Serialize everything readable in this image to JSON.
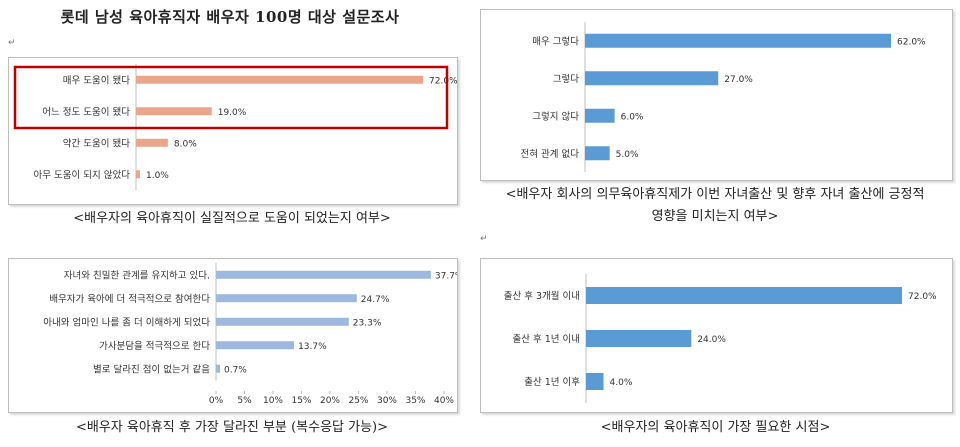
{
  "title": "롯데 남성 육아휴직자 배우자 100명 대상 설문조사",
  "paragraph_mark": "↵",
  "colors": {
    "salmon": "#E9A68A",
    "blue": "#5B9BD5",
    "lightblue": "#9DB9E0",
    "highlight": "#C00000"
  },
  "captions": {
    "c1": "<배우자의 육아휴직이 실질적으로 도움이 되었는지 여부>",
    "c2_line1": "<배우자 회사의 의무육아휴직제가 이번 자녀출산 및 향후 자녀 출산에 긍정적",
    "c2_line2": "영향을 미치는지 여부>",
    "c3": "<배우자 육아휴직 후 가장 달라진 부분 (복수응답 가능)>",
    "c4": "<배우자의 육아휴직이 가장 필요한 시점>"
  },
  "chart_data": [
    {
      "type": "bar",
      "orientation": "horizontal",
      "categories": [
        "매우 도움이 됐다",
        "어느 정도 도움이 됐다",
        "약간 도움이 됐다",
        "아무 도움이 되지 않았다"
      ],
      "values": [
        72.0,
        19.0,
        8.0,
        1.0
      ],
      "labels": [
        "72.0%",
        "19.0%",
        "8.0%",
        "1.0%"
      ],
      "xlim": [
        0,
        72
      ],
      "color": "#E9A68A",
      "highlight_rows": [
        0,
        1
      ]
    },
    {
      "type": "bar",
      "orientation": "horizontal",
      "categories": [
        "매우 그렇다",
        "그렇다",
        "그렇지 않다",
        "전혀 관계 없다"
      ],
      "values": [
        62.0,
        27.0,
        6.0,
        5.0
      ],
      "labels": [
        "62.0%",
        "27.0%",
        "6.0%",
        "5.0%"
      ],
      "xlim": [
        0,
        62
      ],
      "color": "#5B9BD5"
    },
    {
      "type": "bar",
      "orientation": "horizontal",
      "categories": [
        "자녀와 친밀한 관계를 유지하고 있다.",
        "배우자가 육아에 더 적극적으로 참여한다",
        "아내와 엄마인 나를 좀 더 이해하게 되었다",
        "가사분담을 적극적으로 한다",
        "별로 달라진 점이 없는거 같음"
      ],
      "values": [
        37.7,
        24.7,
        23.3,
        13.7,
        0.7
      ],
      "labels": [
        "37.7%",
        "24.7%",
        "23.3%",
        "13.7%",
        "0.7%"
      ],
      "xlim": [
        0,
        40
      ],
      "xticks": [
        "0%",
        "5%",
        "10%",
        "15%",
        "20%",
        "25%",
        "30%",
        "35%",
        "40%"
      ],
      "color": "#9DB9E0"
    },
    {
      "type": "bar",
      "orientation": "horizontal",
      "categories": [
        "출산 후 3개월 이내",
        "출산 후 1년 이내",
        "출산 1년 이후"
      ],
      "values": [
        72.0,
        24.0,
        4.0
      ],
      "labels": [
        "72.0%",
        "24.0%",
        "4.0%"
      ],
      "xlim": [
        0,
        72
      ],
      "color": "#5B9BD5"
    }
  ]
}
